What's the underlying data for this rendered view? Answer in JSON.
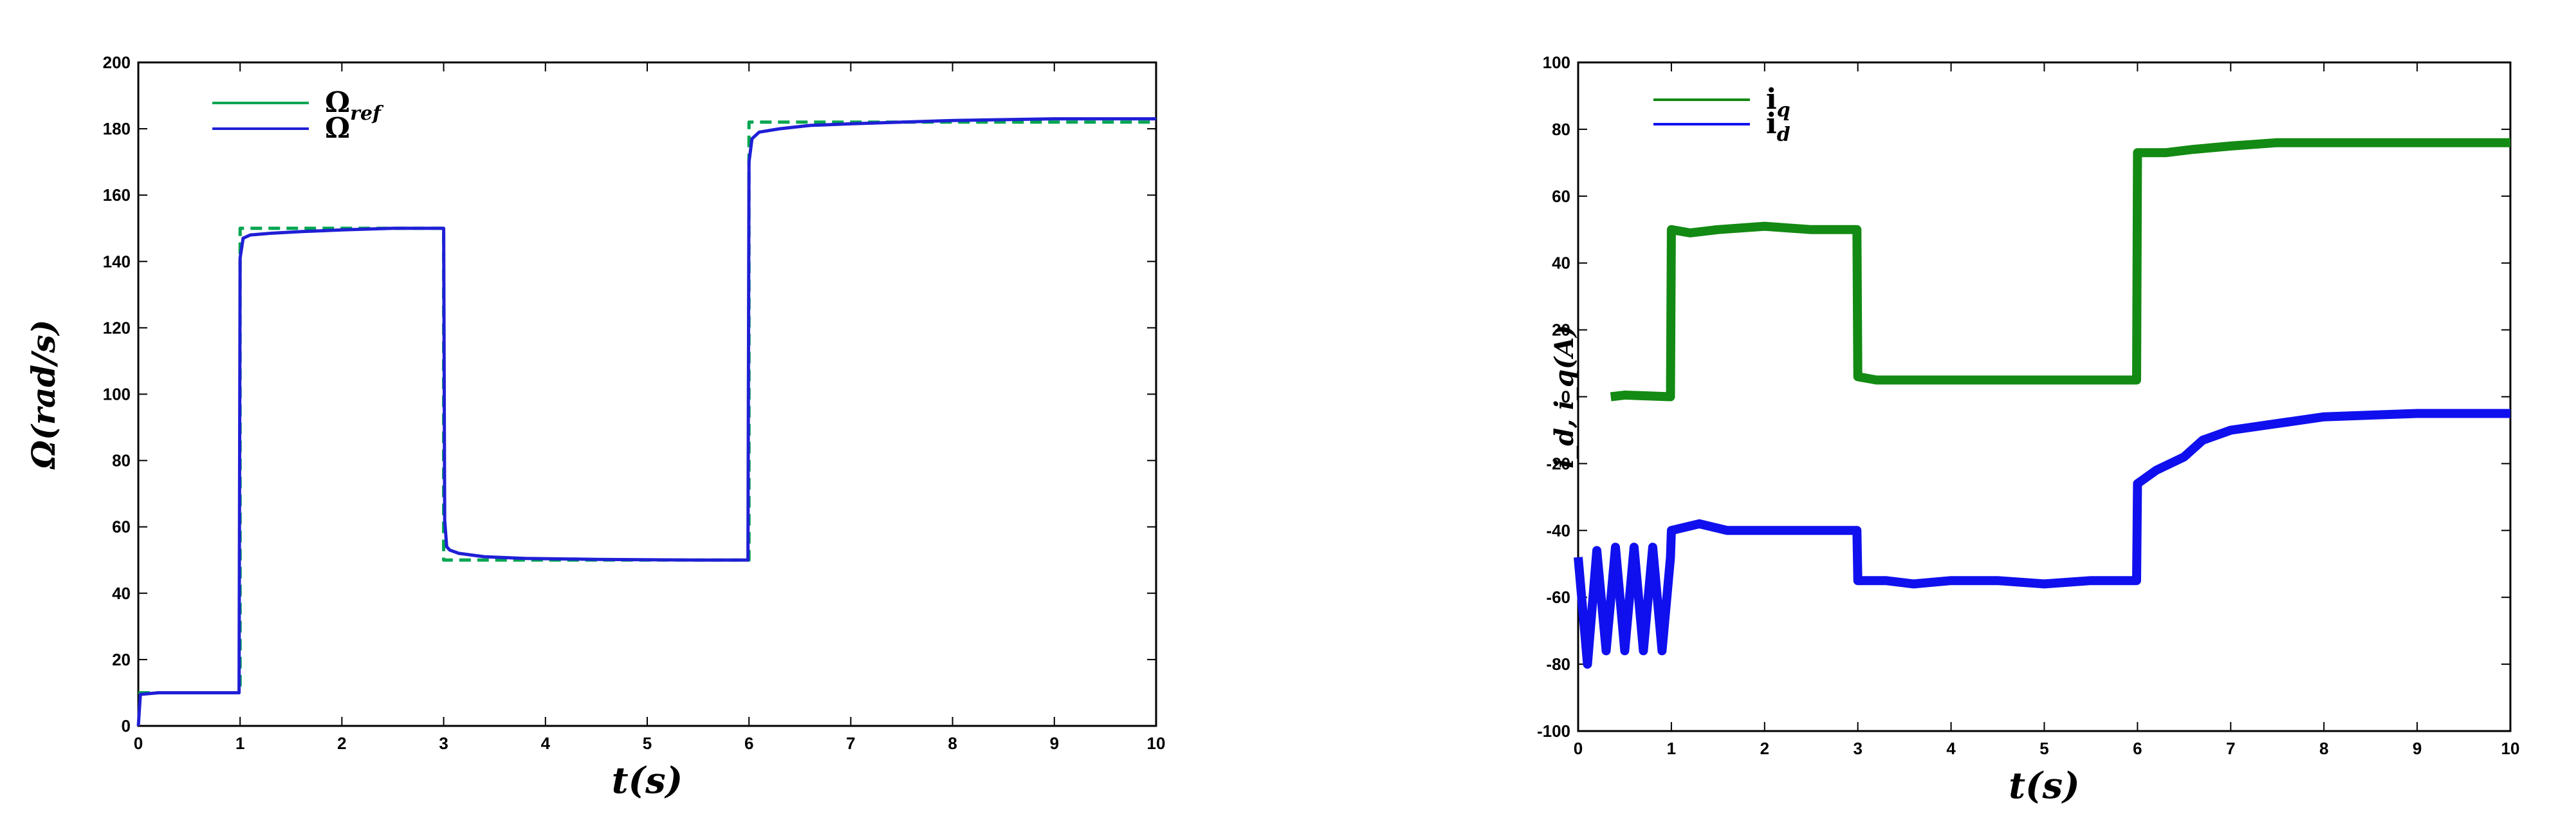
{
  "chart_data": [
    {
      "type": "line",
      "title": "",
      "xlabel": "t(s)",
      "ylabel": "Ω(rad/s)",
      "xlim": [
        0,
        10
      ],
      "ylim": [
        0,
        200
      ],
      "x_ticks": [
        "0",
        "1",
        "2",
        "3",
        "4",
        "5",
        "6",
        "7",
        "8",
        "9",
        "10"
      ],
      "y_ticks": [
        "0",
        "20",
        "40",
        "60",
        "80",
        "100",
        "120",
        "140",
        "160",
        "180",
        "200"
      ],
      "grid": false,
      "legend_placement": "top-left",
      "series": [
        {
          "name": "Ω_ref",
          "legend_main": "Ω",
          "legend_sub": "ref",
          "color": "#00a550",
          "style": "dashed",
          "x": [
            0,
            1,
            1,
            3,
            3,
            6,
            6,
            10
          ],
          "y": [
            10,
            10,
            150,
            150,
            50,
            50,
            182,
            182
          ]
        },
        {
          "name": "Ω",
          "legend_main": "Ω",
          "legend_sub": "",
          "color": "#1f1fd6",
          "style": "solid",
          "x": [
            0,
            0.02,
            0.2,
            0.5,
            0.99,
            1.0,
            1.03,
            1.1,
            1.3,
            1.6,
            2.0,
            2.5,
            2.99,
            3.0,
            3.01,
            3.03,
            3.06,
            3.15,
            3.4,
            3.8,
            4.5,
            5.5,
            5.99,
            6.0,
            6.03,
            6.1,
            6.3,
            6.6,
            7.0,
            7.5,
            8.0,
            9.0,
            10.0
          ],
          "y": [
            0,
            9.5,
            10,
            10,
            10,
            141,
            147,
            148,
            148.5,
            149,
            149.5,
            150,
            150,
            150,
            62,
            54,
            53,
            52,
            51,
            50.5,
            50.2,
            50,
            50,
            170,
            177,
            179,
            180,
            181,
            181.5,
            182,
            182.5,
            183,
            183
          ]
        }
      ]
    },
    {
      "type": "line",
      "title": "",
      "xlabel": "t(s)",
      "ylabel": "i_d, i_q(A)",
      "xlim": [
        0,
        10
      ],
      "ylim": [
        -100,
        100
      ],
      "x_ticks": [
        "0",
        "1",
        "2",
        "3",
        "4",
        "5",
        "6",
        "7",
        "8",
        "9",
        "10"
      ],
      "y_ticks": [
        "-100",
        "-80",
        "-60",
        "-40",
        "-20",
        "0",
        "20",
        "40",
        "60",
        "80",
        "100"
      ],
      "grid": false,
      "legend_placement": "top-left",
      "series": [
        {
          "name": "i_q",
          "legend_main": "i",
          "legend_sub": "q",
          "color": "#138a13",
          "style": "solid",
          "x": [
            0.35,
            0.5,
            0.99,
            1.0,
            1.2,
            1.5,
            2.0,
            2.5,
            2.99,
            3.0,
            3.2,
            3.5,
            4.0,
            4.5,
            5.0,
            5.5,
            5.99,
            6.0,
            6.3,
            6.6,
            7.0,
            7.5,
            8.0,
            9.0,
            10.0
          ],
          "y": [
            0,
            0.5,
            0,
            50,
            49,
            50,
            51,
            50,
            50,
            6,
            5,
            5,
            5,
            5,
            5,
            5,
            5,
            73,
            73,
            74,
            75,
            76,
            76,
            76,
            76
          ]
        },
        {
          "name": "i_d",
          "legend_main": "i",
          "legend_sub": "d",
          "color": "#1010ee",
          "style": "solid",
          "x": [
            0,
            0.1,
            0.2,
            0.3,
            0.4,
            0.5,
            0.6,
            0.7,
            0.8,
            0.9,
            0.99,
            1.0,
            1.3,
            1.6,
            2.0,
            2.5,
            2.99,
            3.0,
            3.3,
            3.6,
            4.0,
            4.5,
            5.0,
            5.5,
            5.99,
            6.0,
            6.2,
            6.5,
            6.7,
            7.0,
            7.5,
            8.0,
            9.0,
            10.0
          ],
          "y": [
            -48,
            -80,
            -46,
            -76,
            -45,
            -76,
            -45,
            -76,
            -45,
            -76,
            -48,
            -40,
            -38,
            -40,
            -40,
            -40,
            -40,
            -55,
            -55,
            -56,
            -55,
            -55,
            -56,
            -55,
            -55,
            -26,
            -22,
            -18,
            -13,
            -10,
            -8,
            -6,
            -5,
            -5
          ]
        }
      ]
    }
  ]
}
